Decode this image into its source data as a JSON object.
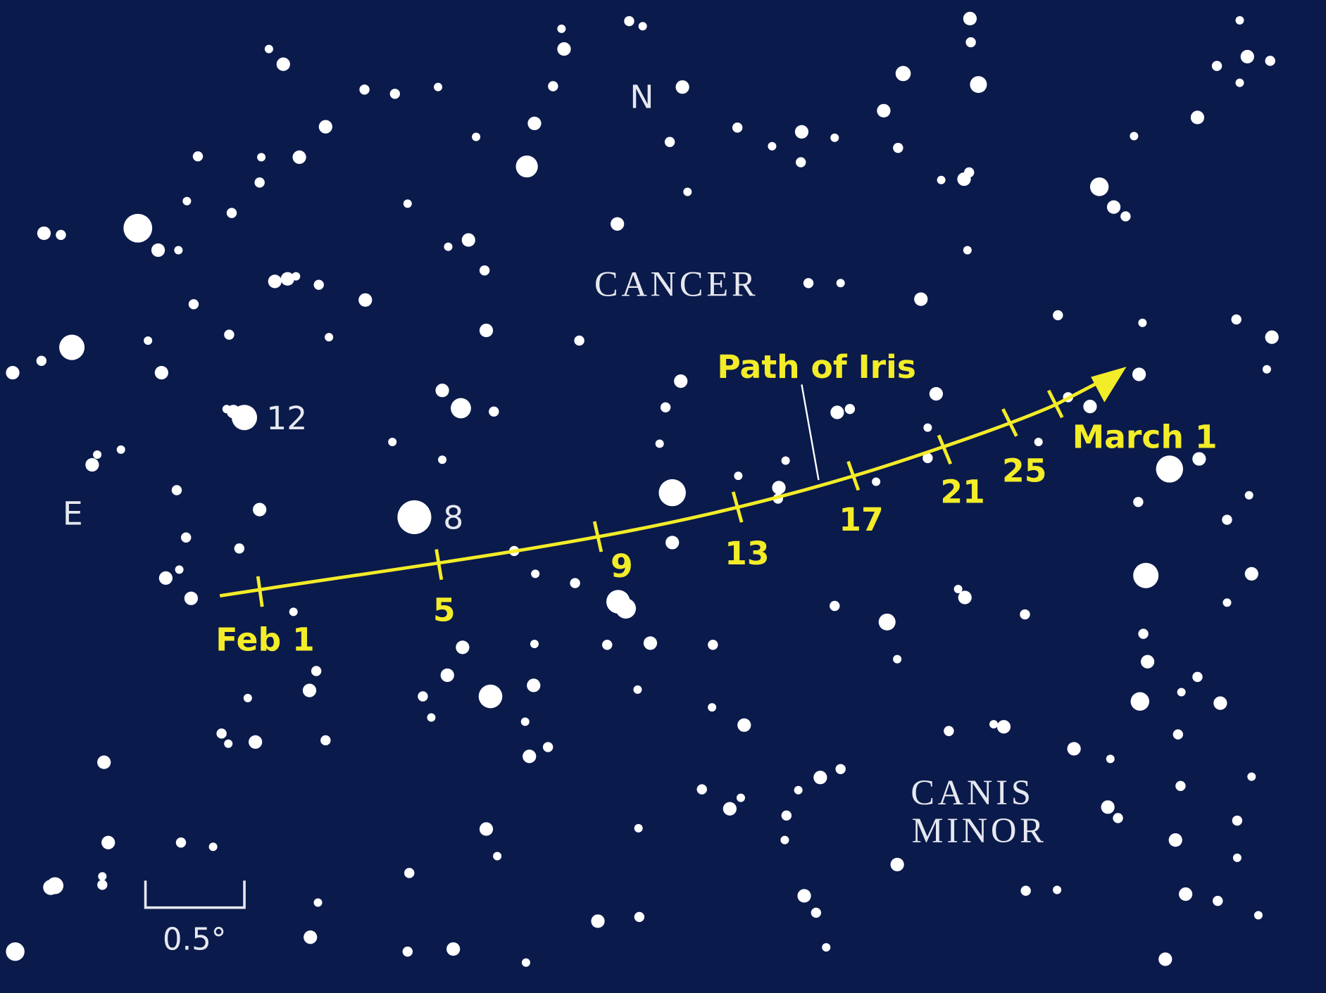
{
  "labels": {
    "north": "N",
    "east": "E",
    "cancer": "CANCER",
    "canis_minor": [
      "CANIS",
      "MINOR"
    ],
    "star_12": "12",
    "star_8": "8",
    "path": "Path of Iris",
    "scale": "0.5°"
  },
  "path_dates": [
    "Feb 1",
    "5",
    "9",
    "13",
    "17",
    "21",
    "25",
    "March 1"
  ]
}
